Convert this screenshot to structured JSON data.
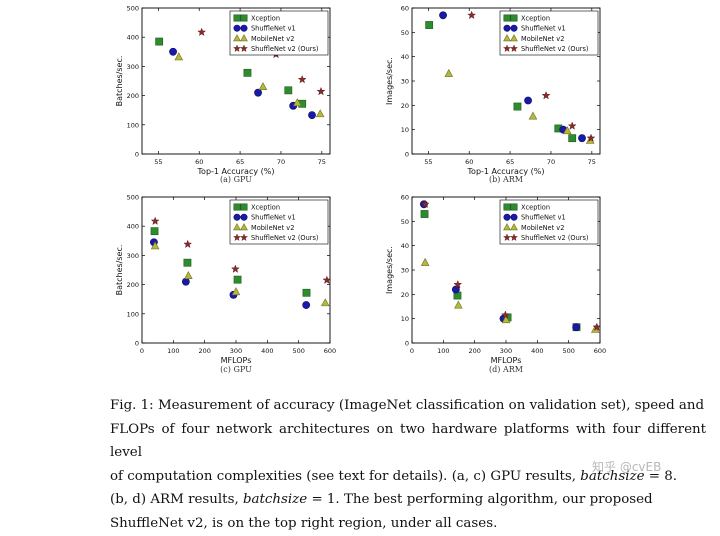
{
  "series_styles": [
    {
      "name": "Xception",
      "marker": "square",
      "color": "#2e8b2e"
    },
    {
      "name": "ShuffleNet v1",
      "marker": "circle",
      "color": "#1a1aa8"
    },
    {
      "name": "MobileNet v2",
      "marker": "triangle",
      "color": "#b5b83a"
    },
    {
      "name": "ShuffleNet v2 (Ours)",
      "marker": "star",
      "color": "#8b2a2a"
    }
  ],
  "chart_data": [
    {
      "type": "scatter",
      "caption": "(a) GPU",
      "xlabel": "Top-1 Accuracy (%)",
      "ylabel": "Batches/sec.",
      "xlim": [
        53,
        76
      ],
      "ylim": [
        0,
        500
      ],
      "xticks": [
        55,
        60,
        65,
        70,
        75
      ],
      "yticks": [
        0,
        100,
        200,
        300,
        400,
        500
      ],
      "legend": [
        "Xception",
        "ShuffleNet v1",
        "MobileNet v2",
        "ShuffleNet v2 (Ours)"
      ],
      "series": [
        {
          "name": "Xception",
          "x": [
            55.1,
            65.9,
            70.9,
            72.6
          ],
          "y": [
            385,
            278,
            218,
            172
          ]
        },
        {
          "name": "ShuffleNet v1",
          "x": [
            56.8,
            67.2,
            71.5,
            73.8
          ],
          "y": [
            350,
            210,
            165,
            133
          ]
        },
        {
          "name": "MobileNet v2",
          "x": [
            57.5,
            67.8,
            72.0,
            74.8
          ],
          "y": [
            332,
            230,
            175,
            137
          ]
        },
        {
          "name": "ShuffleNet v2 (Ours)",
          "x": [
            60.3,
            69.4,
            72.6,
            74.9
          ],
          "y": [
            417,
            341,
            255,
            214
          ]
        }
      ]
    },
    {
      "type": "scatter",
      "caption": "(b) ARM",
      "xlabel": "Top-1 Accuracy (%)",
      "ylabel": "Images/sec.",
      "xlim": [
        53,
        76
      ],
      "ylim": [
        0,
        60
      ],
      "xticks": [
        55,
        60,
        65,
        70,
        75
      ],
      "yticks": [
        0,
        10,
        20,
        30,
        40,
        50,
        60
      ],
      "legend": [
        "Xception",
        "ShuffleNet v1",
        "MobileNet v2",
        "ShuffleNet v2 (Ours)"
      ],
      "series": [
        {
          "name": "Xception",
          "x": [
            55.1,
            65.9,
            70.9,
            72.6
          ],
          "y": [
            53,
            19.5,
            10.5,
            6.5
          ]
        },
        {
          "name": "ShuffleNet v1",
          "x": [
            56.8,
            67.2,
            71.5,
            73.8
          ],
          "y": [
            57,
            22,
            10,
            6.5
          ]
        },
        {
          "name": "MobileNet v2",
          "x": [
            57.5,
            67.8,
            72.0,
            74.8
          ],
          "y": [
            33,
            15.5,
            9.5,
            5.5
          ]
        },
        {
          "name": "ShuffleNet v2 (Ours)",
          "x": [
            60.3,
            69.4,
            72.6,
            74.9
          ],
          "y": [
            57,
            24,
            11.5,
            6.5
          ]
        }
      ]
    },
    {
      "type": "scatter",
      "caption": "(c) GPU",
      "xlabel": "MFLOPs",
      "ylabel": "Batches/sec.",
      "xlim": [
        0,
        600
      ],
      "ylim": [
        0,
        500
      ],
      "xticks": [
        0,
        100,
        200,
        300,
        400,
        500,
        600
      ],
      "yticks": [
        0,
        100,
        200,
        300,
        400,
        500
      ],
      "legend": [
        "Xception",
        "ShuffleNet v1",
        "MobileNet v2",
        "ShuffleNet v2 (Ours)"
      ],
      "series": [
        {
          "name": "Xception",
          "x": [
            40,
            145,
            305,
            525
          ],
          "y": [
            383,
            275,
            217,
            172
          ]
        },
        {
          "name": "ShuffleNet v1",
          "x": [
            38,
            140,
            292,
            524
          ],
          "y": [
            345,
            210,
            165,
            130
          ]
        },
        {
          "name": "MobileNet v2",
          "x": [
            42,
            148,
            300,
            585
          ],
          "y": [
            332,
            230,
            175,
            137
          ]
        },
        {
          "name": "ShuffleNet v2 (Ours)",
          "x": [
            42,
            146,
            298,
            590
          ],
          "y": [
            417,
            338,
            253,
            215
          ]
        }
      ]
    },
    {
      "type": "scatter",
      "caption": "(d) ARM",
      "xlabel": "MFLOPs",
      "ylabel": "Images/sec.",
      "xlim": [
        0,
        600
      ],
      "ylim": [
        0,
        60
      ],
      "xticks": [
        0,
        100,
        200,
        300,
        400,
        500,
        600
      ],
      "yticks": [
        0,
        10,
        20,
        30,
        40,
        50,
        60
      ],
      "legend": [
        "Xception",
        "ShuffleNet v1",
        "MobileNet v2",
        "ShuffleNet v2 (Ours)"
      ],
      "series": [
        {
          "name": "Xception",
          "x": [
            40,
            145,
            305,
            525
          ],
          "y": [
            53,
            19.5,
            10.5,
            6.5
          ]
        },
        {
          "name": "ShuffleNet v1",
          "x": [
            38,
            140,
            292,
            524
          ],
          "y": [
            57,
            22,
            10,
            6.5
          ]
        },
        {
          "name": "MobileNet v2",
          "x": [
            42,
            148,
            300,
            585
          ],
          "y": [
            33,
            15.5,
            9.5,
            5.5
          ]
        },
        {
          "name": "ShuffleNet v2 (Ours)",
          "x": [
            42,
            146,
            298,
            590
          ],
          "y": [
            57,
            24,
            11.5,
            6.5
          ]
        }
      ]
    }
  ],
  "caption": {
    "line1": "Fig. 1: Measurement of accuracy (ImageNet classification on validation set), speed and",
    "line2": "FLOPs of four network architectures on two hardware platforms with four different level",
    "line3": "of computation complexities (see text for details). (a, c) GPU results,",
    "line3_var": "batchsize",
    "line3_end": "= 8.",
    "line4_start": "(b, d) ARM results,",
    "line4_var": "batchsize",
    "line4_end": "= 1. The best performing algorithm, our proposed",
    "line5": "ShuffleNet v2, is on the top right region, under all cases."
  },
  "watermark": "知乎 @cvEB"
}
